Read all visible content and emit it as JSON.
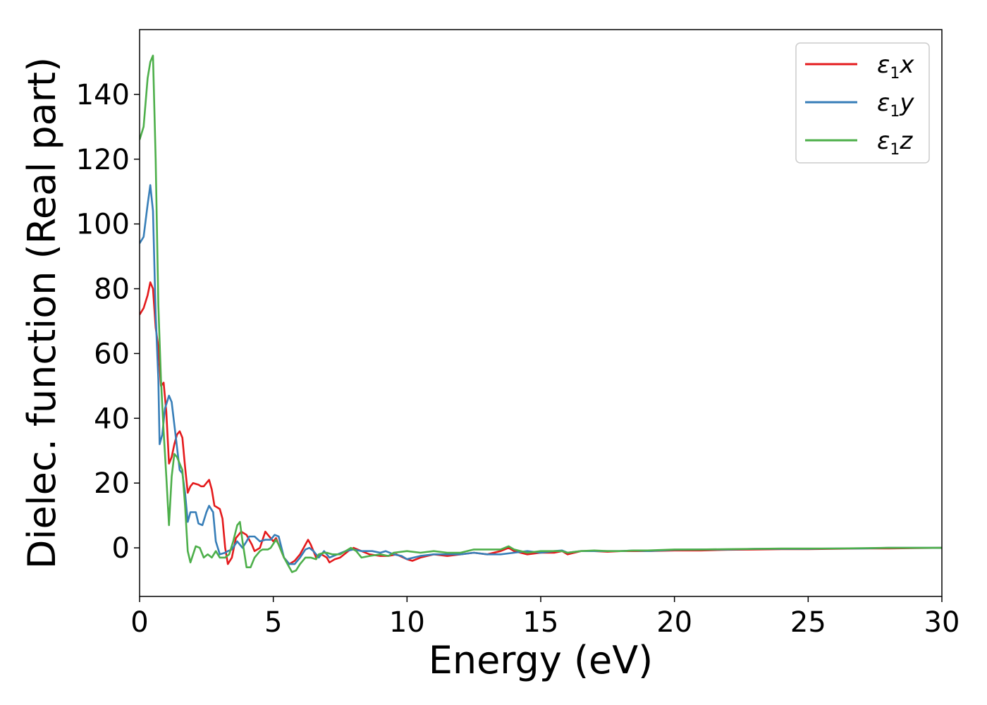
{
  "chart_data": {
    "type": "line",
    "xlabel": "Energy (eV)",
    "ylabel": "Dielec. function (Real part)",
    "xlim": [
      0,
      30
    ],
    "ylim": [
      -15,
      160
    ],
    "xticks": [
      0,
      5,
      10,
      15,
      20,
      25,
      30
    ],
    "yticks": [
      0,
      20,
      40,
      60,
      80,
      100,
      120,
      140
    ],
    "grid": false,
    "legend_position": "top-right",
    "series": [
      {
        "name": "ε1x",
        "legend": {
          "base": "ε",
          "sub": "1",
          "tail": "x"
        },
        "color": "#e41a1c",
        "points": [
          [
            0,
            72
          ],
          [
            0.15,
            74
          ],
          [
            0.3,
            78
          ],
          [
            0.4,
            82
          ],
          [
            0.5,
            80
          ],
          [
            0.6,
            68
          ],
          [
            0.7,
            62
          ],
          [
            0.8,
            50
          ],
          [
            0.9,
            51
          ],
          [
            1.0,
            42
          ],
          [
            1.1,
            26
          ],
          [
            1.2,
            28
          ],
          [
            1.3,
            32
          ],
          [
            1.4,
            35
          ],
          [
            1.5,
            36
          ],
          [
            1.6,
            34
          ],
          [
            1.7,
            25
          ],
          [
            1.8,
            17
          ],
          [
            1.9,
            19
          ],
          [
            2.0,
            20
          ],
          [
            2.2,
            19.5
          ],
          [
            2.3,
            19
          ],
          [
            2.4,
            19
          ],
          [
            2.6,
            21
          ],
          [
            2.7,
            18
          ],
          [
            2.8,
            13
          ],
          [
            3.0,
            12
          ],
          [
            3.1,
            9
          ],
          [
            3.2,
            0
          ],
          [
            3.3,
            -5
          ],
          [
            3.45,
            -3
          ],
          [
            3.6,
            3
          ],
          [
            3.8,
            5
          ],
          [
            4.0,
            4
          ],
          [
            4.2,
            1
          ],
          [
            4.3,
            -1
          ],
          [
            4.5,
            0
          ],
          [
            4.7,
            5
          ],
          [
            4.9,
            3
          ],
          [
            5.0,
            2
          ],
          [
            5.1,
            3
          ],
          [
            5.2,
            1
          ],
          [
            5.4,
            -3
          ],
          [
            5.6,
            -5
          ],
          [
            5.8,
            -4
          ],
          [
            6.0,
            -2
          ],
          [
            6.2,
            1
          ],
          [
            6.3,
            2.5
          ],
          [
            6.4,
            1
          ],
          [
            6.6,
            -3
          ],
          [
            6.8,
            -2
          ],
          [
            7.0,
            -3
          ],
          [
            7.1,
            -4.5
          ],
          [
            7.3,
            -3.5
          ],
          [
            7.5,
            -3
          ],
          [
            7.8,
            -1
          ],
          [
            8.0,
            0
          ],
          [
            8.3,
            -1
          ],
          [
            8.6,
            -2
          ],
          [
            9.0,
            -2.5
          ],
          [
            9.3,
            -2.5
          ],
          [
            9.6,
            -2
          ],
          [
            10.0,
            -3.5
          ],
          [
            10.2,
            -4
          ],
          [
            10.5,
            -3
          ],
          [
            11.0,
            -2
          ],
          [
            11.5,
            -2.5
          ],
          [
            12.0,
            -2
          ],
          [
            12.5,
            -1.5
          ],
          [
            13.0,
            -2
          ],
          [
            13.5,
            -1
          ],
          [
            13.8,
            0
          ],
          [
            14.0,
            -1
          ],
          [
            14.5,
            -2
          ],
          [
            15.0,
            -1.5
          ],
          [
            15.5,
            -1.5
          ],
          [
            15.8,
            -1
          ],
          [
            16.0,
            -2
          ],
          [
            16.5,
            -1
          ],
          [
            17.0,
            -1
          ],
          [
            17.5,
            -1.2
          ],
          [
            18.0,
            -1
          ],
          [
            18.5,
            -1
          ],
          [
            19.0,
            -1
          ],
          [
            20.0,
            -0.8
          ],
          [
            21.0,
            -0.8
          ],
          [
            22.0,
            -0.6
          ],
          [
            23.0,
            -0.5
          ],
          [
            24.0,
            -0.4
          ],
          [
            25.0,
            -0.4
          ],
          [
            26.0,
            -0.3
          ],
          [
            27.0,
            -0.2
          ],
          [
            28.0,
            -0.2
          ],
          [
            29.0,
            -0.1
          ],
          [
            30.0,
            0
          ]
        ]
      },
      {
        "name": "ε1y",
        "legend": {
          "base": "ε",
          "sub": "1",
          "tail": "y"
        },
        "color": "#377eb8",
        "points": [
          [
            0,
            94
          ],
          [
            0.15,
            96
          ],
          [
            0.3,
            106
          ],
          [
            0.4,
            112
          ],
          [
            0.5,
            104
          ],
          [
            0.6,
            72
          ],
          [
            0.7,
            52
          ],
          [
            0.75,
            32
          ],
          [
            0.85,
            35
          ],
          [
            0.95,
            43
          ],
          [
            1.1,
            47
          ],
          [
            1.2,
            45
          ],
          [
            1.3,
            38
          ],
          [
            1.4,
            31
          ],
          [
            1.5,
            24
          ],
          [
            1.6,
            23
          ],
          [
            1.7,
            17
          ],
          [
            1.8,
            8
          ],
          [
            1.9,
            11
          ],
          [
            2.0,
            11
          ],
          [
            2.1,
            11
          ],
          [
            2.2,
            7.5
          ],
          [
            2.35,
            7
          ],
          [
            2.5,
            11
          ],
          [
            2.6,
            13
          ],
          [
            2.75,
            11
          ],
          [
            2.85,
            2
          ],
          [
            3.0,
            -2
          ],
          [
            3.2,
            -1.5
          ],
          [
            3.3,
            -1
          ],
          [
            3.45,
            -0.5
          ],
          [
            3.65,
            2
          ],
          [
            3.85,
            0
          ],
          [
            4.0,
            2
          ],
          [
            4.1,
            3.5
          ],
          [
            4.3,
            3.5
          ],
          [
            4.5,
            2
          ],
          [
            4.7,
            2.5
          ],
          [
            4.9,
            2.5
          ],
          [
            5.05,
            4
          ],
          [
            5.2,
            3.5
          ],
          [
            5.4,
            -3
          ],
          [
            5.6,
            -5
          ],
          [
            5.8,
            -5
          ],
          [
            6.0,
            -3
          ],
          [
            6.2,
            -0.5
          ],
          [
            6.35,
            0
          ],
          [
            6.5,
            -1
          ],
          [
            6.7,
            -3
          ],
          [
            6.9,
            -1
          ],
          [
            7.1,
            -3
          ],
          [
            7.4,
            -2
          ],
          [
            7.7,
            -1
          ],
          [
            8.0,
            -0.5
          ],
          [
            8.3,
            -1
          ],
          [
            8.7,
            -1
          ],
          [
            9.0,
            -1.5
          ],
          [
            9.2,
            -1
          ],
          [
            9.5,
            -2
          ],
          [
            9.8,
            -2.5
          ],
          [
            10.0,
            -3.5
          ],
          [
            10.5,
            -2.5
          ],
          [
            11.0,
            -2
          ],
          [
            11.5,
            -2
          ],
          [
            12.0,
            -2
          ],
          [
            12.5,
            -1.5
          ],
          [
            13.0,
            -2
          ],
          [
            13.5,
            -2
          ],
          [
            14.0,
            -1.5
          ],
          [
            14.5,
            -1
          ],
          [
            15.0,
            -1.5
          ],
          [
            15.5,
            -1
          ],
          [
            15.8,
            -0.8
          ],
          [
            16.0,
            -1.5
          ],
          [
            16.5,
            -1
          ],
          [
            17.0,
            -1
          ],
          [
            17.5,
            -1
          ],
          [
            18.0,
            -1
          ],
          [
            18.5,
            -0.8
          ],
          [
            19.0,
            -1
          ],
          [
            20.0,
            -0.6
          ],
          [
            21.0,
            -0.5
          ],
          [
            22.0,
            -0.5
          ],
          [
            23.0,
            -0.3
          ],
          [
            24.0,
            -0.3
          ],
          [
            25.0,
            -0.3
          ],
          [
            26.0,
            -0.2
          ],
          [
            27.0,
            -0.2
          ],
          [
            28.0,
            0
          ],
          [
            29.0,
            0
          ],
          [
            30.0,
            0
          ]
        ]
      },
      {
        "name": "ε1z",
        "legend": {
          "base": "ε",
          "sub": "1",
          "tail": "z"
        },
        "color": "#4daf4a",
        "points": [
          [
            0,
            126
          ],
          [
            0.15,
            130
          ],
          [
            0.3,
            145
          ],
          [
            0.4,
            150
          ],
          [
            0.5,
            152
          ],
          [
            0.6,
            120
          ],
          [
            0.7,
            75
          ],
          [
            0.8,
            52
          ],
          [
            0.9,
            36
          ],
          [
            1.0,
            22
          ],
          [
            1.1,
            7
          ],
          [
            1.2,
            22
          ],
          [
            1.3,
            29
          ],
          [
            1.4,
            28
          ],
          [
            1.5,
            26
          ],
          [
            1.6,
            24
          ],
          [
            1.7,
            13
          ],
          [
            1.8,
            -1
          ],
          [
            1.9,
            -4.5
          ],
          [
            2.0,
            -2
          ],
          [
            2.1,
            0.5
          ],
          [
            2.25,
            0
          ],
          [
            2.4,
            -3
          ],
          [
            2.55,
            -2
          ],
          [
            2.7,
            -3
          ],
          [
            2.85,
            -1
          ],
          [
            3.0,
            -3
          ],
          [
            3.2,
            -3
          ],
          [
            3.35,
            -2
          ],
          [
            3.5,
            2
          ],
          [
            3.65,
            7
          ],
          [
            3.75,
            8
          ],
          [
            3.85,
            2
          ],
          [
            4.0,
            -6
          ],
          [
            4.15,
            -6
          ],
          [
            4.3,
            -3
          ],
          [
            4.5,
            -1
          ],
          [
            4.6,
            -0.5
          ],
          [
            4.8,
            -0.5
          ],
          [
            4.9,
            0
          ],
          [
            5.1,
            2.5
          ],
          [
            5.2,
            1
          ],
          [
            5.4,
            -3
          ],
          [
            5.6,
            -6
          ],
          [
            5.7,
            -7.5
          ],
          [
            5.85,
            -7
          ],
          [
            6.0,
            -5
          ],
          [
            6.2,
            -3
          ],
          [
            6.4,
            -3
          ],
          [
            6.6,
            -3.5
          ],
          [
            6.7,
            -2
          ],
          [
            6.9,
            -1.5
          ],
          [
            7.0,
            -1.5
          ],
          [
            7.2,
            -2
          ],
          [
            7.5,
            -2
          ],
          [
            7.7,
            -1
          ],
          [
            7.9,
            0
          ],
          [
            8.1,
            -1
          ],
          [
            8.3,
            -3
          ],
          [
            8.6,
            -2.5
          ],
          [
            9.0,
            -2
          ],
          [
            9.3,
            -2.5
          ],
          [
            9.5,
            -1.5
          ],
          [
            10.0,
            -1
          ],
          [
            10.5,
            -1.5
          ],
          [
            11.0,
            -1
          ],
          [
            11.5,
            -1.5
          ],
          [
            12.0,
            -1.5
          ],
          [
            12.5,
            -0.5
          ],
          [
            13.0,
            -0.5
          ],
          [
            13.5,
            -0.5
          ],
          [
            13.8,
            0.5
          ],
          [
            14.0,
            -0.5
          ],
          [
            14.5,
            -1.5
          ],
          [
            15.0,
            -1
          ],
          [
            15.5,
            -1
          ],
          [
            15.8,
            -1
          ],
          [
            16.0,
            -1.5
          ],
          [
            16.5,
            -1
          ],
          [
            17.0,
            -0.8
          ],
          [
            17.5,
            -1
          ],
          [
            18.0,
            -1
          ],
          [
            18.5,
            -0.8
          ],
          [
            19.0,
            -0.8
          ],
          [
            20.0,
            -0.5
          ],
          [
            21.0,
            -0.5
          ],
          [
            22.0,
            -0.4
          ],
          [
            23.0,
            -0.3
          ],
          [
            24.0,
            -0.2
          ],
          [
            25.0,
            -0.2
          ],
          [
            26.0,
            -0.2
          ],
          [
            27.0,
            -0.1
          ],
          [
            28.0,
            0
          ],
          [
            29.0,
            0
          ],
          [
            30.0,
            0
          ]
        ]
      }
    ]
  }
}
